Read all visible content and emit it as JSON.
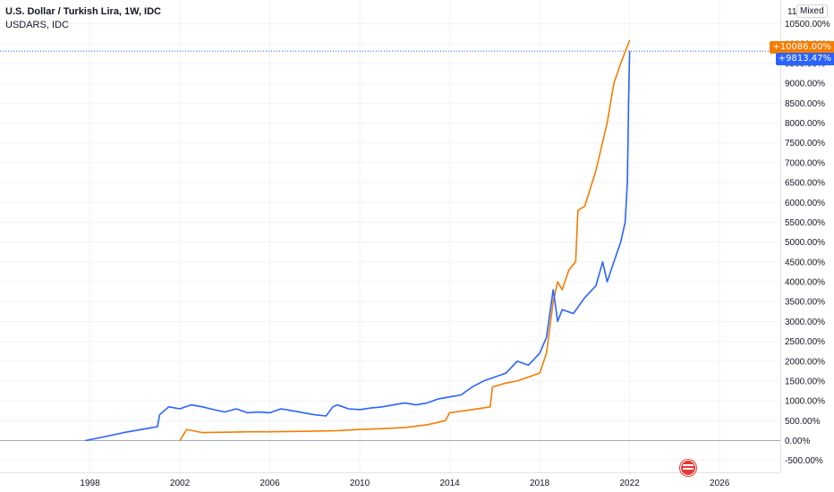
{
  "legend": {
    "main_title": "U.S. Dollar / Turkish Lira, 1W, IDC",
    "compare_title": "USDARS, IDC"
  },
  "scale_mode": "Mixed",
  "top_partial_label": "11",
  "colors": {
    "usdtry": "#2962ff",
    "usdars": "#f57c00",
    "grid": "#f0f3fa",
    "axis_text": "#131722",
    "crosshair": "#2962ff"
  },
  "badges": {
    "usdars_value": "+10086.00%",
    "usdtry_value": "+9813.47%"
  },
  "icons": {
    "flag": "us-flag-icon"
  },
  "chart_data": {
    "type": "line",
    "title": "U.S. Dollar / Turkish Lira, 1W, IDC",
    "xlabel": "",
    "ylabel": "",
    "x_ticks": [
      "1998",
      "2002",
      "2006",
      "2010",
      "2014",
      "2018",
      "2022",
      "2026"
    ],
    "y_ticks": [
      "10500.00%",
      "10000.00%",
      "9500.00%",
      "9000.00%",
      "8500.00%",
      "8000.00%",
      "7500.00%",
      "7000.00%",
      "6500.00%",
      "6000.00%",
      "5500.00%",
      "5000.00%",
      "4500.00%",
      "4000.00%",
      "3500.00%",
      "3000.00%",
      "2500.00%",
      "2000.00%",
      "1500.00%",
      "1000.00%",
      "500.00%",
      "0.00%",
      "-500.00%"
    ],
    "xlim": [
      1994.0,
      2028.7
    ],
    "ylim": [
      -800,
      11100
    ],
    "y_unit": "%",
    "grid": true,
    "crosshair_y": 9813.47,
    "series": [
      {
        "name": "U.S. Dollar / Turkish Lira",
        "color": "#2962ff",
        "points": [
          [
            1997.8,
            0
          ],
          [
            1998.5,
            80
          ],
          [
            1999.5,
            200
          ],
          [
            2000.5,
            300
          ],
          [
            2001.0,
            350
          ],
          [
            2001.1,
            650
          ],
          [
            2001.5,
            850
          ],
          [
            2002.0,
            800
          ],
          [
            2002.5,
            900
          ],
          [
            2003.0,
            850
          ],
          [
            2003.5,
            780
          ],
          [
            2004.0,
            720
          ],
          [
            2004.5,
            800
          ],
          [
            2005.0,
            700
          ],
          [
            2005.5,
            720
          ],
          [
            2006.0,
            700
          ],
          [
            2006.5,
            800
          ],
          [
            2007.0,
            750
          ],
          [
            2007.5,
            700
          ],
          [
            2008.0,
            650
          ],
          [
            2008.5,
            620
          ],
          [
            2008.8,
            850
          ],
          [
            2009.0,
            900
          ],
          [
            2009.5,
            800
          ],
          [
            2010.0,
            780
          ],
          [
            2010.5,
            820
          ],
          [
            2011.0,
            850
          ],
          [
            2011.5,
            900
          ],
          [
            2012.0,
            950
          ],
          [
            2012.5,
            900
          ],
          [
            2013.0,
            950
          ],
          [
            2013.5,
            1050
          ],
          [
            2014.0,
            1100
          ],
          [
            2014.5,
            1150
          ],
          [
            2015.0,
            1350
          ],
          [
            2015.5,
            1500
          ],
          [
            2016.0,
            1600
          ],
          [
            2016.5,
            1700
          ],
          [
            2017.0,
            2000
          ],
          [
            2017.5,
            1900
          ],
          [
            2018.0,
            2200
          ],
          [
            2018.3,
            2600
          ],
          [
            2018.6,
            3800
          ],
          [
            2018.8,
            3000
          ],
          [
            2019.0,
            3300
          ],
          [
            2019.5,
            3200
          ],
          [
            2020.0,
            3600
          ],
          [
            2020.5,
            3900
          ],
          [
            2020.8,
            4500
          ],
          [
            2021.0,
            4000
          ],
          [
            2021.3,
            4500
          ],
          [
            2021.6,
            5000
          ],
          [
            2021.8,
            5500
          ],
          [
            2021.9,
            6500
          ],
          [
            2021.95,
            8500
          ],
          [
            2022.0,
            9813.47
          ]
        ]
      },
      {
        "name": "USDARS",
        "color": "#f57c00",
        "points": [
          [
            2002.0,
            0
          ],
          [
            2002.3,
            280
          ],
          [
            2003.0,
            200
          ],
          [
            2004.0,
            210
          ],
          [
            2005.0,
            220
          ],
          [
            2006.0,
            220
          ],
          [
            2007.0,
            230
          ],
          [
            2008.0,
            240
          ],
          [
            2009.0,
            250
          ],
          [
            2010.0,
            280
          ],
          [
            2011.0,
            300
          ],
          [
            2012.0,
            330
          ],
          [
            2013.0,
            400
          ],
          [
            2013.8,
            500
          ],
          [
            2014.0,
            700
          ],
          [
            2015.0,
            780
          ],
          [
            2015.8,
            850
          ],
          [
            2015.9,
            1350
          ],
          [
            2016.5,
            1450
          ],
          [
            2017.0,
            1500
          ],
          [
            2017.5,
            1600
          ],
          [
            2018.0,
            1700
          ],
          [
            2018.3,
            2200
          ],
          [
            2018.6,
            3500
          ],
          [
            2018.8,
            4000
          ],
          [
            2019.0,
            3800
          ],
          [
            2019.3,
            4300
          ],
          [
            2019.6,
            4500
          ],
          [
            2019.7,
            5800
          ],
          [
            2020.0,
            5900
          ],
          [
            2020.5,
            6800
          ],
          [
            2021.0,
            8000
          ],
          [
            2021.3,
            9000
          ],
          [
            2021.6,
            9500
          ],
          [
            2022.0,
            10086
          ]
        ]
      }
    ]
  }
}
